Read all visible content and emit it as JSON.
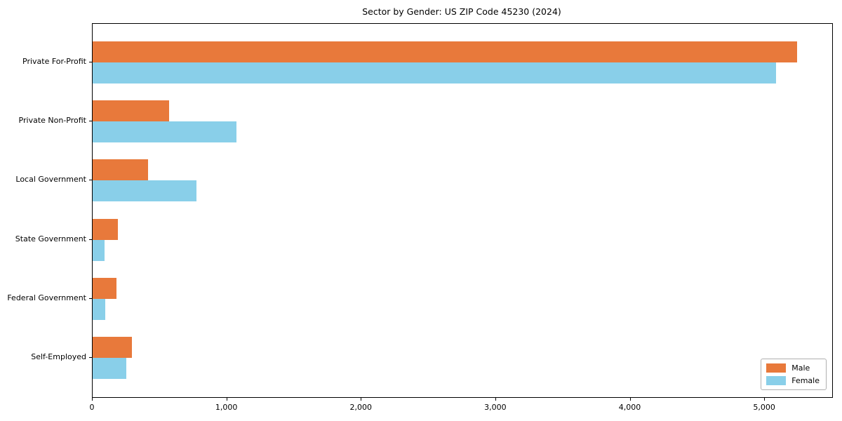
{
  "figure": {
    "title": "Sector by Gender: US ZIP Code 45230 (2024)"
  },
  "chart_data": {
    "type": "bar",
    "orientation": "horizontal",
    "title": "Sector by Gender: US ZIP Code 45230 (2024)",
    "categories": [
      "Private For-Profit",
      "Private Non-Profit",
      "Local Government",
      "State Government",
      "Federal Government",
      "Self-Employed"
    ],
    "series": [
      {
        "name": "Male",
        "color": "#E8793B",
        "values": [
          5240,
          570,
          410,
          190,
          180,
          290
        ]
      },
      {
        "name": "Female",
        "color": "#89CFE9",
        "values": [
          5080,
          1070,
          770,
          90,
          95,
          250
        ]
      }
    ],
    "xlabel": "",
    "ylabel": "",
    "xlim": [
      0,
      5500
    ],
    "xticks": [
      0,
      1000,
      2000,
      3000,
      4000,
      5000
    ],
    "xtick_labels": [
      "0",
      "1,000",
      "2,000",
      "3,000",
      "4,000",
      "5,000"
    ],
    "grid": false,
    "legend": {
      "position": "lower right",
      "entries": [
        "Male",
        "Female"
      ]
    }
  }
}
